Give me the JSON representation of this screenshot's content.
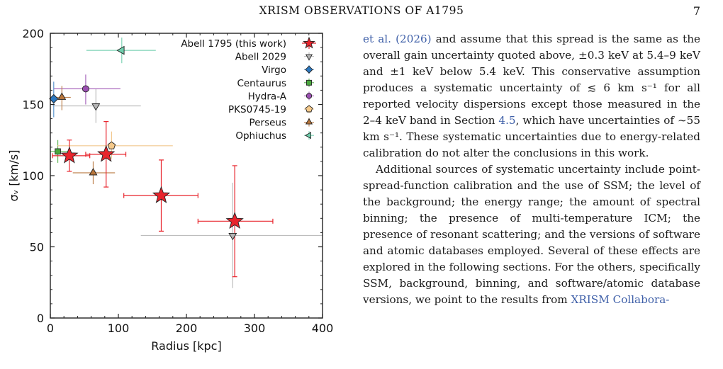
{
  "header": {
    "running_title": "XRISM OBSERVATIONS OF A1795",
    "page_number": "7"
  },
  "chart_data": {
    "type": "scatter",
    "xlabel": "Radius [kpc]",
    "ylabel": "σᵥ [km/s]",
    "xlim": [
      0,
      400
    ],
    "ylim": [
      0,
      200
    ],
    "xticks": [
      0,
      100,
      200,
      300,
      400
    ],
    "yticks": [
      0,
      50,
      100,
      150,
      200
    ],
    "legend_position": "top-right",
    "grid": false,
    "series": [
      {
        "name": "Abell 1795 (this work)",
        "marker": "star",
        "color": "#e8242c",
        "errcolor": "#e8242c",
        "points": [
          {
            "x": 28,
            "xlo": 3,
            "xhi": 58,
            "y": 114,
            "ylo": 103,
            "yhi": 125
          },
          {
            "x": 82,
            "xlo": 52,
            "xhi": 111,
            "y": 115,
            "ylo": 92,
            "yhi": 138
          },
          {
            "x": 163,
            "xlo": 108,
            "xhi": 217,
            "y": 86,
            "ylo": 61,
            "yhi": 111
          },
          {
            "x": 271,
            "xlo": 217,
            "xhi": 327,
            "y": 68,
            "ylo": 29,
            "yhi": 107
          }
        ]
      },
      {
        "name": "Abell 2029",
        "marker": "triangle-down",
        "color": "#b4b4b4",
        "errcolor": "#bdbdbd",
        "points": [
          {
            "x": 67,
            "xlo": 3,
            "xhi": 133,
            "y": 149,
            "ylo": 137,
            "yhi": 161
          },
          {
            "x": 268,
            "xlo": 133,
            "xhi": 400,
            "y": 58,
            "ylo": 21,
            "yhi": 95
          }
        ]
      },
      {
        "name": "Virgo",
        "marker": "diamond",
        "color": "#2c78c0",
        "errcolor": "#5a95cf",
        "points": [
          {
            "x": 5,
            "xlo": 0,
            "xhi": 22,
            "y": 154,
            "ylo": 141,
            "yhi": 166
          }
        ]
      },
      {
        "name": "Centaurus",
        "marker": "square",
        "color": "#4aa83e",
        "errcolor": "#63b85a",
        "points": [
          {
            "x": 11,
            "xlo": 0,
            "xhi": 30,
            "y": 117,
            "ylo": 109,
            "yhi": 125
          }
        ]
      },
      {
        "name": "Hydra-A",
        "marker": "circle",
        "color": "#9b4fb2",
        "errcolor": "#a867bd",
        "points": [
          {
            "x": 52,
            "xlo": 5,
            "xhi": 103,
            "y": 161,
            "ylo": 150,
            "yhi": 171
          }
        ]
      },
      {
        "name": "PKS0745-19",
        "marker": "pentagon",
        "color": "#f5c98a",
        "errcolor": "#f2c88f",
        "points": [
          {
            "x": 90,
            "xlo": 10,
            "xhi": 180,
            "y": 121,
            "ylo": 112,
            "yhi": 131
          }
        ]
      },
      {
        "name": "Perseus",
        "marker": "triangle-up",
        "color": "#b8753a",
        "errcolor": "#bf8452",
        "points": [
          {
            "x": 17,
            "xlo": 5,
            "xhi": 30,
            "y": 155,
            "ylo": 146,
            "yhi": 163
          },
          {
            "x": 63,
            "xlo": 33,
            "xhi": 95,
            "y": 102,
            "ylo": 94,
            "yhi": 110
          }
        ]
      },
      {
        "name": "Ophiuchus",
        "marker": "triangle-left",
        "color": "#6fd0ae",
        "errcolor": "#7fd4b5",
        "points": [
          {
            "x": 105,
            "xlo": 53,
            "xhi": 155,
            "y": 188,
            "ylo": 179,
            "yhi": 197
          }
        ]
      }
    ]
  },
  "body": {
    "p1": {
      "cite_open": "et al. (2026)",
      "t1": " and assume that this spread is the same as the overall gain uncertainty quoted above, ±0.3 keV at 5.4–9 keV and ±1 keV below 5.4 keV. This conservative assumption produces a systematic uncertainty of ≲ 6 km s⁻¹ for all reported velocity dispersions except those measured in the 2–4 keV band in Section ",
      "section_ref": "4.5",
      "t2": ", which have uncertainties of ∼55 km s⁻¹. These systematic uncertainties due to energy-related calibration do not alter the conclusions in this work."
    },
    "p2": {
      "t1": "Additional sources of systematic uncertainty include point-spread-function calibration and the use of SSM; the level of the background; the energy range; the amount of spectral binning; the presence of multi-temperature ICM; the presence of resonant scattering; and the versions of software and atomic databases employed. Several of these effects are explored in the following sections. For the others, specifically SSM, background, binning, and software/atomic database versions, we point to the results from ",
      "cite_close": "XRISM Collabora-"
    }
  }
}
